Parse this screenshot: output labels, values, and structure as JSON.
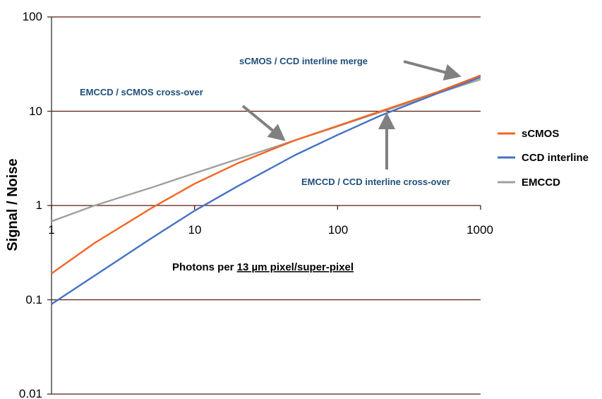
{
  "chart_data": {
    "type": "line",
    "x_scale": "log",
    "y_scale": "log",
    "xlim": [
      1,
      1000
    ],
    "ylim": [
      0.01,
      100
    ],
    "x_ticks": [
      "1",
      "10",
      "100",
      "1000"
    ],
    "y_ticks": [
      "100",
      "10",
      "1",
      "0.1",
      "0.01"
    ],
    "ylabel": "Signal / Noise",
    "xlabel_prefix": "Photons per ",
    "xlabel_underlined": "13 µm pixel/super-pixel",
    "grid": "horizontal",
    "legend_position": "right",
    "series": [
      {
        "name": "sCMOS",
        "color": "#f26522",
        "x": [
          1,
          2,
          5,
          10,
          20,
          50,
          100,
          200,
          500,
          1000
        ],
        "y": [
          0.19,
          0.4,
          0.94,
          1.7,
          2.8,
          4.9,
          7.0,
          10.0,
          16.0,
          24.0
        ]
      },
      {
        "name": "CCD interline",
        "color": "#4472c4",
        "x": [
          1,
          2,
          5,
          10,
          20,
          50,
          100,
          200,
          500,
          1000
        ],
        "y": [
          0.09,
          0.18,
          0.45,
          0.88,
          1.6,
          3.4,
          5.6,
          9.0,
          15.5,
          23.0
        ]
      },
      {
        "name": "EMCCD",
        "color": "#a0a0a0",
        "x": [
          1,
          2,
          5,
          10,
          20,
          50,
          100,
          200,
          500,
          1000
        ],
        "y": [
          0.68,
          1.0,
          1.55,
          2.2,
          3.1,
          4.9,
          6.9,
          9.8,
          15.5,
          21.8
        ]
      }
    ],
    "annotations": [
      "sCMOS / CCD interline merge",
      "EMCCD / sCMOS cross-over",
      "EMCCD / CCD interline cross-over"
    ]
  }
}
